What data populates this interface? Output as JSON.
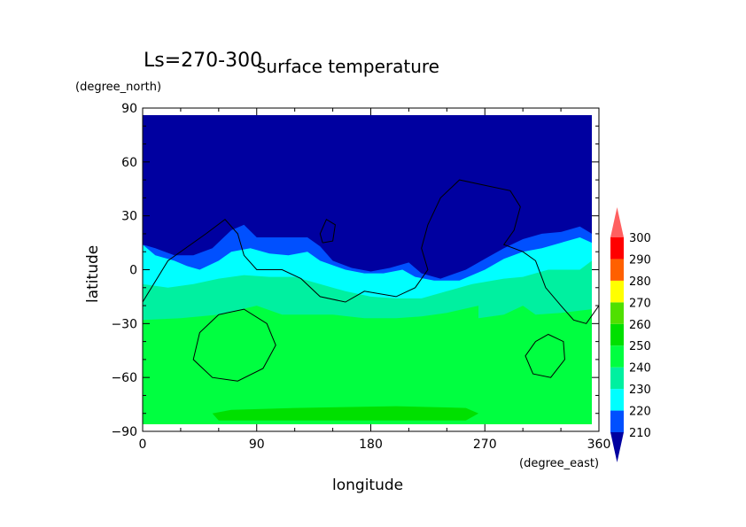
{
  "chart_data": {
    "type": "contour-map",
    "title": "surface temperature",
    "period_label": "Ls=270-300",
    "xlabel": "longitude",
    "ylabel": "latitude",
    "x_unit": "(degree_east)",
    "y_unit": "(degree_north)",
    "xlim": [
      0,
      360
    ],
    "ylim": [
      -90,
      90
    ],
    "x_ticks": [
      0,
      90,
      180,
      270,
      360
    ],
    "y_ticks": [
      90,
      60,
      30,
      0,
      -30,
      -60,
      -90
    ],
    "colorbar": {
      "levels": [
        210,
        220,
        230,
        240,
        250,
        260,
        270,
        280,
        290,
        300
      ],
      "colors": {
        "below_210": "#0000a0",
        "210_220": "#0050ff",
        "220_230": "#00ffff",
        "230_240": "#00f0a0",
        "240_250": "#00ff40",
        "250_260": "#00e000",
        "260_270": "#50e000",
        "270_280": "#ffff00",
        "280_290": "#ff6000",
        "290_300": "#ff0000",
        "above_300": "#ff6060"
      }
    },
    "field_regions": [
      {
        "band": "below_210",
        "description_lat": "north of ~10°N",
        "lat_range": [
          10,
          85
        ]
      },
      {
        "band": "210_220",
        "lat_range": [
          0,
          15
        ]
      },
      {
        "band": "220_230",
        "lat_range": [
          -10,
          8
        ]
      },
      {
        "band": "230_240",
        "lat_range": [
          -25,
          -5
        ]
      },
      {
        "band": "240_250",
        "lat_range": [
          -85,
          -20
        ]
      },
      {
        "band": "250_260",
        "lat_range": [
          -85,
          -78
        ]
      }
    ],
    "topography_contours": [
      {
        "name": "contour-west",
        "points": [
          [
            0,
            -18
          ],
          [
            20,
            5
          ],
          [
            50,
            20
          ],
          [
            65,
            28
          ],
          [
            75,
            20
          ],
          [
            80,
            8
          ],
          [
            90,
            0
          ],
          [
            110,
            0
          ],
          [
            125,
            -5
          ],
          [
            140,
            -15
          ],
          [
            160,
            -18
          ],
          [
            175,
            -12
          ],
          [
            200,
            -15
          ],
          [
            215,
            -10
          ],
          [
            225,
            0
          ],
          [
            220,
            12
          ],
          [
            225,
            25
          ],
          [
            235,
            40
          ],
          [
            250,
            50
          ],
          [
            270,
            47
          ],
          [
            290,
            44
          ],
          [
            298,
            35
          ],
          [
            293,
            22
          ],
          [
            285,
            14
          ],
          [
            300,
            10
          ],
          [
            310,
            5
          ],
          [
            318,
            -10
          ],
          [
            330,
            -20
          ],
          [
            340,
            -28
          ],
          [
            350,
            -30
          ],
          [
            360,
            -20
          ]
        ]
      },
      {
        "name": "contour-small-north",
        "points": [
          [
            142,
            15
          ],
          [
            140,
            20
          ],
          [
            145,
            28
          ],
          [
            152,
            25
          ],
          [
            150,
            16
          ],
          [
            142,
            15
          ]
        ]
      },
      {
        "name": "contour-south-west",
        "points": [
          [
            60,
            -25
          ],
          [
            45,
            -35
          ],
          [
            40,
            -50
          ],
          [
            55,
            -60
          ],
          [
            75,
            -62
          ],
          [
            95,
            -55
          ],
          [
            105,
            -42
          ],
          [
            98,
            -30
          ],
          [
            80,
            -22
          ],
          [
            60,
            -25
          ]
        ]
      },
      {
        "name": "contour-south-east",
        "points": [
          [
            310,
            -40
          ],
          [
            302,
            -48
          ],
          [
            308,
            -58
          ],
          [
            322,
            -60
          ],
          [
            333,
            -50
          ],
          [
            332,
            -40
          ],
          [
            320,
            -36
          ],
          [
            310,
            -40
          ]
        ]
      }
    ]
  }
}
